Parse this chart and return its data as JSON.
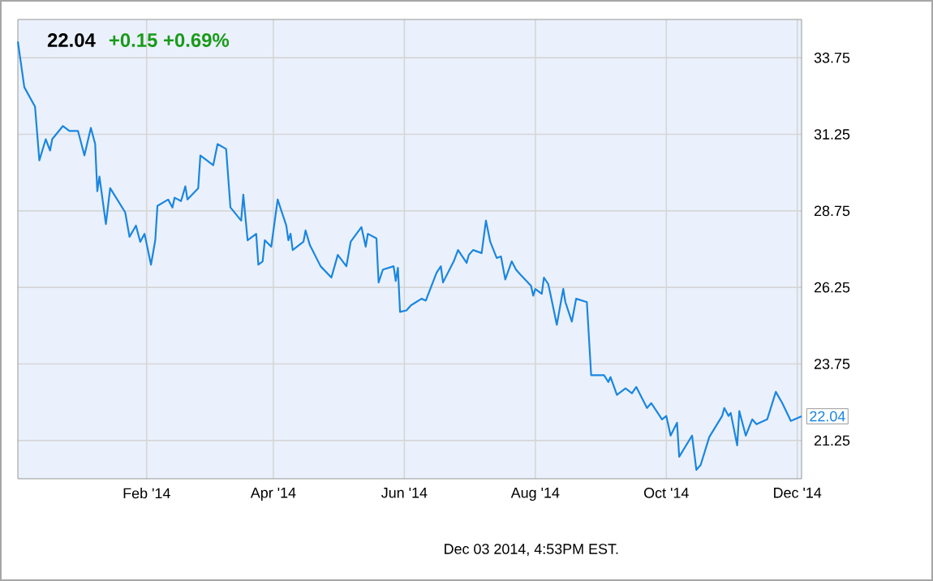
{
  "chart_data": {
    "type": "line",
    "title": "22.04",
    "subtitle": "+0.15  +0.69%",
    "x": [
      "2013-12-03",
      "2013-12-06",
      "2013-12-11",
      "2013-12-13",
      "2013-12-16",
      "2013-12-18",
      "2013-12-19",
      "2013-12-24",
      "2013-12-27",
      "2013-12-31",
      "2014-01-03",
      "2014-01-06",
      "2014-01-08",
      "2014-01-09",
      "2014-01-10",
      "2014-01-13",
      "2014-01-15",
      "2014-01-22",
      "2014-01-24",
      "2014-01-27",
      "2014-01-29",
      "2014-01-31",
      "2014-02-03",
      "2014-02-05",
      "2014-02-06",
      "2014-02-11",
      "2014-02-13",
      "2014-02-14",
      "2014-02-17",
      "2014-02-19",
      "2014-02-20",
      "2014-02-25",
      "2014-02-26",
      "2014-03-04",
      "2014-03-06",
      "2014-03-10",
      "2014-03-12",
      "2014-03-17",
      "2014-03-18",
      "2014-03-20",
      "2014-03-24",
      "2014-03-25",
      "2014-03-27",
      "2014-03-28",
      "2014-03-31",
      "2014-04-03",
      "2014-04-07",
      "2014-04-08",
      "2014-04-09",
      "2014-04-10",
      "2014-04-15",
      "2014-04-16",
      "2014-04-18",
      "2014-04-23",
      "2014-04-28",
      "2014-05-01",
      "2014-05-05",
      "2014-05-07",
      "2014-05-12",
      "2014-05-14",
      "2014-05-15",
      "2014-05-19",
      "2014-05-20",
      "2014-05-22",
      "2014-05-27",
      "2014-05-28",
      "2014-05-29",
      "2014-05-30",
      "2014-06-02",
      "2014-06-04",
      "2014-06-09",
      "2014-06-11",
      "2014-06-16",
      "2014-06-18",
      "2014-06-19",
      "2014-06-24",
      "2014-06-26",
      "2014-06-30",
      "2014-07-01",
      "2014-07-03",
      "2014-07-07",
      "2014-07-09",
      "2014-07-11",
      "2014-07-14",
      "2014-07-16",
      "2014-07-18",
      "2014-07-21",
      "2014-07-23",
      "2014-07-25",
      "2014-07-30",
      "2014-07-31",
      "2014-08-01",
      "2014-08-04",
      "2014-08-05",
      "2014-08-07",
      "2014-08-08",
      "2014-08-11",
      "2014-08-14",
      "2014-08-15",
      "2014-08-18",
      "2014-08-20",
      "2014-08-25",
      "2014-08-27",
      "2014-09-02",
      "2014-09-04",
      "2014-09-05",
      "2014-09-08",
      "2014-09-12",
      "2014-09-15",
      "2014-09-17",
      "2014-09-22",
      "2014-09-24",
      "2014-09-29",
      "2014-10-01",
      "2014-10-03",
      "2014-10-06",
      "2014-10-07",
      "2014-10-13",
      "2014-10-15",
      "2014-10-17",
      "2014-10-21",
      "2014-10-27",
      "2014-10-28",
      "2014-10-30",
      "2014-10-31",
      "2014-11-03",
      "2014-11-04",
      "2014-11-07",
      "2014-11-10",
      "2014-11-12",
      "2014-11-17",
      "2014-11-21",
      "2014-11-24",
      "2014-11-28",
      "2014-12-03"
    ],
    "series": [
      {
        "color": "#1a86e0",
        "values": [
          34.28,
          32.79,
          32.15,
          30.4,
          31.09,
          30.72,
          31.09,
          31.52,
          31.36,
          31.36,
          30.56,
          31.46,
          30.93,
          29.39,
          29.87,
          28.32,
          29.49,
          28.7,
          27.9,
          28.27,
          27.74,
          28.0,
          26.99,
          27.79,
          28.91,
          29.12,
          28.86,
          29.18,
          29.07,
          29.55,
          29.12,
          29.49,
          30.56,
          30.24,
          30.93,
          30.77,
          28.86,
          28.43,
          29.28,
          27.79,
          28.0,
          26.99,
          27.1,
          27.79,
          27.58,
          29.12,
          28.27,
          27.79,
          28.0,
          27.47,
          27.74,
          28.11,
          27.63,
          26.94,
          26.57,
          27.31,
          26.94,
          27.74,
          28.22,
          27.58,
          28.0,
          27.85,
          26.41,
          26.83,
          26.94,
          26.46,
          26.89,
          25.45,
          25.5,
          25.66,
          25.88,
          25.82,
          26.73,
          26.94,
          26.41,
          27.1,
          27.47,
          27.05,
          27.31,
          27.47,
          27.37,
          28.43,
          27.74,
          27.21,
          27.26,
          26.51,
          27.1,
          26.83,
          26.67,
          26.3,
          25.98,
          26.2,
          26.04,
          26.57,
          26.36,
          26.04,
          25.03,
          26.2,
          25.77,
          25.13,
          25.88,
          25.77,
          23.38,
          23.38,
          23.16,
          23.32,
          22.74,
          22.95,
          22.79,
          23.0,
          22.31,
          22.47,
          21.94,
          22.05,
          21.41,
          21.83,
          20.72,
          21.41,
          20.29,
          20.45,
          21.36,
          22.05,
          22.31,
          22.05,
          22.15,
          21.09,
          22.21,
          21.41,
          21.94,
          21.78,
          21.94,
          22.84,
          22.47,
          21.89,
          22.04
        ]
      }
    ],
    "xlim": [
      "2013-12-03",
      "2014-12-03"
    ],
    "xticks": [
      {
        "value": "2014-02-01",
        "label": "Feb '14"
      },
      {
        "value": "2014-04-01",
        "label": "Apr '14"
      },
      {
        "value": "2014-06-01",
        "label": "Jun '14"
      },
      {
        "value": "2014-08-01",
        "label": "Aug '14"
      },
      {
        "value": "2014-10-01",
        "label": "Oct '14"
      },
      {
        "value": "2014-12-01",
        "label": "Dec '14"
      }
    ],
    "ylim": [
      20,
      35
    ],
    "yticks": [
      21.25,
      23.75,
      26.25,
      28.75,
      31.25,
      33.75
    ],
    "grid": true,
    "annotations": [
      {
        "text": "22.04",
        "x": "2014-12-03",
        "y": 22.04
      },
      "Dec 03 2014, 4:53PM EST."
    ]
  }
}
